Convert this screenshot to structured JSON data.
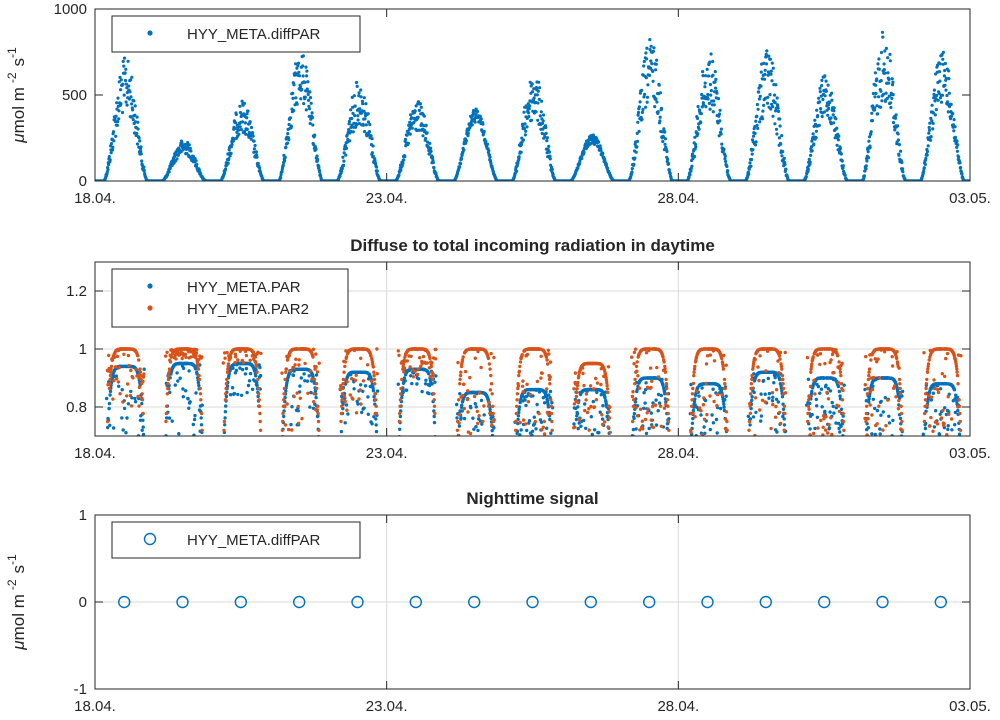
{
  "colors": {
    "blue": "#0072BD",
    "orange": "#D95319",
    "axis": "#262626",
    "grid": "#d9d9d9"
  },
  "chart_data": [
    {
      "type": "scatter",
      "title": "",
      "xlabel": "",
      "ylabel": "μmol m⁻² s⁻¹",
      "ylabel_parts": {
        "mu": "μ",
        "mol": "mol m",
        "e1": "-2",
        "s": "s",
        "e2": "-1"
      },
      "x_range": [
        "2018-04-18",
        "2018-05-03"
      ],
      "x_ticks": [
        {
          "date": "2018-04-18",
          "label": "18.04."
        },
        {
          "date": "2018-04-23",
          "label": "23.04."
        },
        {
          "date": "2018-04-28",
          "label": "28.04."
        },
        {
          "date": "2018-05-03",
          "label": "03.05."
        }
      ],
      "ylim": [
        0,
        1000
      ],
      "y_ticks": [
        {
          "value": 0,
          "label": "0"
        },
        {
          "value": 500,
          "label": "500"
        },
        {
          "value": 1000,
          "label": "1000"
        }
      ],
      "grid": false,
      "legend": {
        "placement": "top-left",
        "entries": [
          "HYY_META.diffPAR"
        ]
      },
      "series": [
        {
          "name": "HYY_META.diffPAR",
          "color": "#0072BD",
          "marker": "dot",
          "daily_peaks": [
            {
              "date": "2018-04-18",
              "peak": 720,
              "noise": 0.45
            },
            {
              "date": "2018-04-19",
              "peak": 240,
              "noise": 0.35
            },
            {
              "date": "2018-04-20",
              "peak": 470,
              "noise": 0.4
            },
            {
              "date": "2018-04-21",
              "peak": 760,
              "noise": 0.4
            },
            {
              "date": "2018-04-22",
              "peak": 590,
              "noise": 0.45
            },
            {
              "date": "2018-04-23",
              "peak": 470,
              "noise": 0.4
            },
            {
              "date": "2018-04-24",
              "peak": 420,
              "noise": 0.2
            },
            {
              "date": "2018-04-25",
              "peak": 630,
              "noise": 0.45
            },
            {
              "date": "2018-04-26",
              "peak": 270,
              "noise": 0.2
            },
            {
              "date": "2018-04-27",
              "peak": 830,
              "noise": 0.45
            },
            {
              "date": "2018-04-28",
              "peak": 760,
              "noise": 0.45
            },
            {
              "date": "2018-04-29",
              "peak": 780,
              "noise": 0.5
            },
            {
              "date": "2018-04-30",
              "peak": 620,
              "noise": 0.4
            },
            {
              "date": "2018-05-01",
              "peak": 880,
              "noise": 0.5
            },
            {
              "date": "2018-05-02",
              "peak": 760,
              "noise": 0.4
            }
          ]
        }
      ]
    },
    {
      "type": "scatter",
      "title": "Diffuse to total incoming radiation in daytime",
      "xlabel": "",
      "ylabel": "",
      "x_range": [
        "2018-04-18",
        "2018-05-03"
      ],
      "x_ticks": [
        {
          "date": "2018-04-18",
          "label": "18.04."
        },
        {
          "date": "2018-04-23",
          "label": "23.04."
        },
        {
          "date": "2018-04-28",
          "label": "28.04."
        },
        {
          "date": "2018-05-03",
          "label": "03.05."
        }
      ],
      "ylim": [
        0.7,
        1.3
      ],
      "y_ticks": [
        {
          "value": 0.8,
          "label": "0.8"
        },
        {
          "value": 1.0,
          "label": "1"
        },
        {
          "value": 1.2,
          "label": "1.2"
        }
      ],
      "grid": true,
      "legend": {
        "placement": "top-left",
        "entries": [
          "HYY_META.PAR",
          "HYY_META.PAR2"
        ]
      },
      "series": [
        {
          "name": "HYY_META.PAR",
          "color": "#0072BD",
          "marker": "dot",
          "daily": [
            {
              "date": "2018-04-18",
              "level": 0.94,
              "min": 0.7
            },
            {
              "date": "2018-04-19",
              "level": 0.95,
              "min": 0.7
            },
            {
              "date": "2018-04-20",
              "level": 0.95,
              "min": 0.83
            },
            {
              "date": "2018-04-21",
              "level": 0.93,
              "min": 0.72
            },
            {
              "date": "2018-04-22",
              "level": 0.92,
              "min": 0.72
            },
            {
              "date": "2018-04-23",
              "level": 0.93,
              "min": 0.84
            },
            {
              "date": "2018-04-24",
              "level": 0.85,
              "min": 0.7
            },
            {
              "date": "2018-04-25",
              "level": 0.86,
              "min": 0.7
            },
            {
              "date": "2018-04-26",
              "level": 0.86,
              "min": 0.7
            },
            {
              "date": "2018-04-27",
              "level": 0.9,
              "min": 0.7
            },
            {
              "date": "2018-04-28",
              "level": 0.88,
              "min": 0.7
            },
            {
              "date": "2018-04-29",
              "level": 0.92,
              "min": 0.7
            },
            {
              "date": "2018-04-30",
              "level": 0.9,
              "min": 0.7
            },
            {
              "date": "2018-05-01",
              "level": 0.9,
              "min": 0.7
            },
            {
              "date": "2018-05-02",
              "level": 0.88,
              "min": 0.7
            }
          ]
        },
        {
          "name": "HYY_META.PAR2",
          "color": "#D95319",
          "marker": "dot",
          "daily": [
            {
              "date": "2018-04-18",
              "level": 1.0,
              "min": 0.8
            },
            {
              "date": "2018-04-19",
              "level": 1.0,
              "min": 0.96
            },
            {
              "date": "2018-04-20",
              "level": 1.0,
              "min": 0.95
            },
            {
              "date": "2018-04-21",
              "level": 1.0,
              "min": 0.72
            },
            {
              "date": "2018-04-22",
              "level": 1.0,
              "min": 0.77
            },
            {
              "date": "2018-04-23",
              "level": 1.0,
              "min": 0.9
            },
            {
              "date": "2018-04-24",
              "level": 1.0,
              "min": 0.7
            },
            {
              "date": "2018-04-25",
              "level": 1.0,
              "min": 0.7
            },
            {
              "date": "2018-04-26",
              "level": 0.95,
              "min": 0.72
            },
            {
              "date": "2018-04-27",
              "level": 1.0,
              "min": 0.7
            },
            {
              "date": "2018-04-28",
              "level": 1.0,
              "min": 0.7
            },
            {
              "date": "2018-04-29",
              "level": 1.0,
              "min": 0.7
            },
            {
              "date": "2018-04-30",
              "level": 1.0,
              "min": 0.7
            },
            {
              "date": "2018-05-01",
              "level": 1.0,
              "min": 0.7
            },
            {
              "date": "2018-05-02",
              "level": 1.0,
              "min": 0.7
            }
          ]
        }
      ]
    },
    {
      "type": "scatter",
      "title": "Nighttime signal",
      "xlabel": "",
      "ylabel": "μmol m⁻² s⁻¹",
      "ylabel_parts": {
        "mu": "μ",
        "mol": "mol m",
        "e1": "-2",
        "s": "s",
        "e2": "-1"
      },
      "x_range": [
        "2018-04-18",
        "2018-05-03"
      ],
      "x_ticks": [
        {
          "date": "2018-04-18",
          "label": "18.04."
        },
        {
          "date": "2018-04-23",
          "label": "23.04."
        },
        {
          "date": "2018-04-28",
          "label": "28.04."
        },
        {
          "date": "2018-05-03",
          "label": "03.05."
        }
      ],
      "ylim": [
        -1,
        1
      ],
      "y_ticks": [
        {
          "value": -1,
          "label": "-1"
        },
        {
          "value": 0,
          "label": "0"
        },
        {
          "value": 1,
          "label": "1"
        }
      ],
      "grid": true,
      "legend": {
        "placement": "top-left",
        "entries": [
          "HYY_META.diffPAR"
        ]
      },
      "series": [
        {
          "name": "HYY_META.diffPAR",
          "color": "#0072BD",
          "marker": "circle",
          "points": [
            {
              "x": "2018-04-18T12:00",
              "y": 0
            },
            {
              "x": "2018-04-19T12:00",
              "y": 0
            },
            {
              "x": "2018-04-20T12:00",
              "y": 0
            },
            {
              "x": "2018-04-21T12:00",
              "y": 0
            },
            {
              "x": "2018-04-22T12:00",
              "y": 0
            },
            {
              "x": "2018-04-23T12:00",
              "y": 0
            },
            {
              "x": "2018-04-24T12:00",
              "y": 0
            },
            {
              "x": "2018-04-25T12:00",
              "y": 0
            },
            {
              "x": "2018-04-26T12:00",
              "y": 0
            },
            {
              "x": "2018-04-27T12:00",
              "y": 0
            },
            {
              "x": "2018-04-28T12:00",
              "y": 0
            },
            {
              "x": "2018-04-29T12:00",
              "y": 0
            },
            {
              "x": "2018-04-30T12:00",
              "y": 0
            },
            {
              "x": "2018-05-01T12:00",
              "y": 0
            },
            {
              "x": "2018-05-02T12:00",
              "y": 0
            }
          ]
        }
      ]
    }
  ]
}
